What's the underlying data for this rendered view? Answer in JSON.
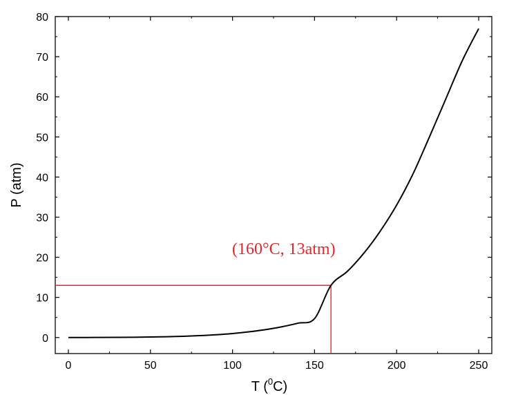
{
  "chart_data": {
    "type": "line",
    "xlabel": "T (",
    "xlabel_sup": "0",
    "xlabel_suffix": "C)",
    "ylabel": "P (atm)",
    "xlim": [
      -8,
      258
    ],
    "ylim": [
      -4,
      80
    ],
    "x_ticks": [
      "0",
      "50",
      "100",
      "150",
      "200",
      "250"
    ],
    "y_ticks": [
      "0",
      "10",
      "20",
      "30",
      "40",
      "50",
      "60",
      "70",
      "80"
    ],
    "series": [
      {
        "x": [
          0,
          10,
          20,
          30,
          40,
          50,
          60,
          70,
          80,
          90,
          100,
          110,
          120,
          130,
          140,
          150,
          160,
          170,
          180,
          190,
          200,
          210,
          220,
          230,
          240,
          250
        ],
        "y": [
          0.0,
          0.01,
          0.02,
          0.04,
          0.07,
          0.12,
          0.2,
          0.31,
          0.47,
          0.69,
          1.0,
          1.42,
          1.96,
          2.67,
          3.58,
          4.72,
          13.0,
          16.5,
          21.0,
          26.5,
          33.0,
          40.8,
          50.0,
          59.5,
          69.0,
          77.0
        ],
        "color": "#000000"
      }
    ],
    "annotation": {
      "text": "(160°C, 13atm)",
      "x": 160,
      "y": 13,
      "color": "#e8262a"
    }
  }
}
